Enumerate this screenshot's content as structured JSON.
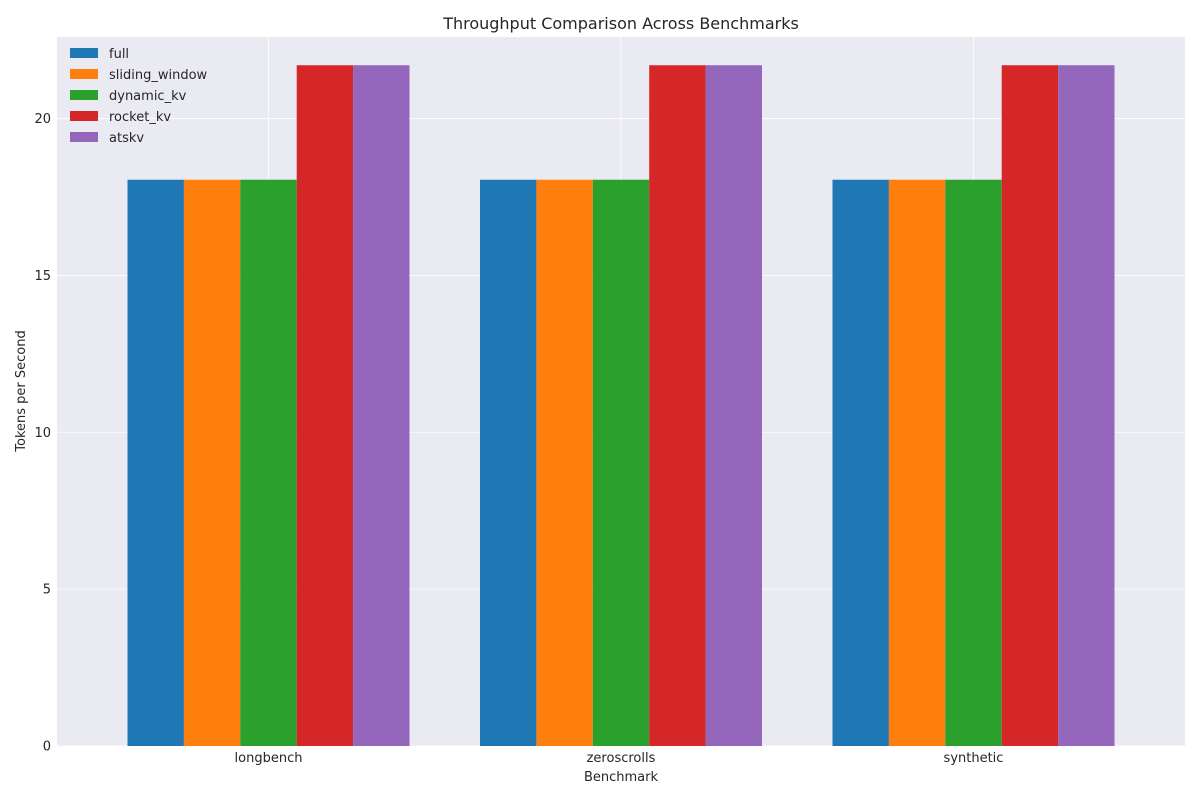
{
  "chart_data": {
    "type": "bar",
    "title": "Throughput Comparison Across Benchmarks",
    "xlabel": "Benchmark",
    "ylabel": "Tokens per Second",
    "categories": [
      "longbench",
      "zeroscrolls",
      "synthetic"
    ],
    "ylim": [
      0,
      22.6
    ],
    "yticks": [
      0,
      5,
      10,
      15,
      20
    ],
    "grid": true,
    "legend_position": "top-left",
    "series": [
      {
        "name": "full",
        "color": "#1f77b4",
        "values": [
          18.05,
          18.05,
          18.05
        ]
      },
      {
        "name": "sliding_window",
        "color": "#ff7f0e",
        "values": [
          18.05,
          18.05,
          18.05
        ]
      },
      {
        "name": "dynamic_kv",
        "color": "#2ca02c",
        "values": [
          18.05,
          18.05,
          18.05
        ]
      },
      {
        "name": "rocket_kv",
        "color": "#d62728",
        "values": [
          21.7,
          21.7,
          21.7
        ]
      },
      {
        "name": "atskv",
        "color": "#9467bd",
        "values": [
          21.7,
          21.7,
          21.7
        ]
      }
    ]
  }
}
